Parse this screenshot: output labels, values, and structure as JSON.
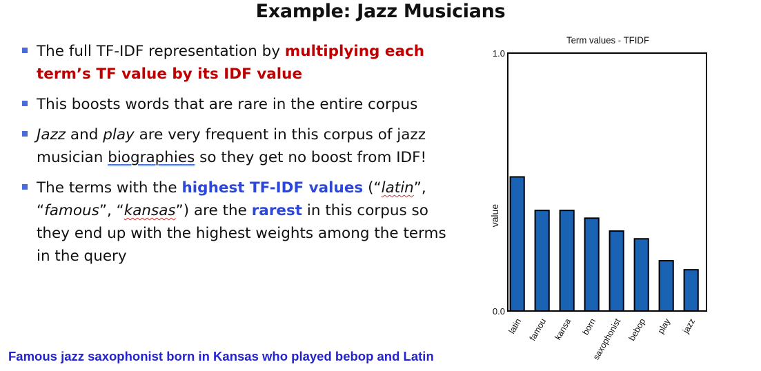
{
  "slide": {
    "title": "Example: Jazz Musicians",
    "bullets": {
      "b1": {
        "t1": "The full TF-IDF representation by ",
        "t2": "multiplying each term’s TF value by its IDF value"
      },
      "b2": {
        "t1": "This boosts words that are rare in the entire corpus"
      },
      "b3": {
        "t1": "Jazz",
        "t2": " and ",
        "t3": "play",
        "t4": " are very frequent in this corpus of jazz musician ",
        "t5": "biographies",
        "t6": " so they get no boost from IDF!"
      },
      "b4": {
        "t1": "The terms with the ",
        "t2": "highest TF-IDF values",
        "t3": " (“",
        "t4": "latin",
        "t5": "”, “",
        "t6": "famous",
        "t7": "”, “",
        "t8": "kansas",
        "t9": "”) are the ",
        "t10": "rarest",
        "t11": " in this corpus so they end up with the highest weights among the terms in the query"
      }
    },
    "query": "Famous jazz saxophonist born in Kansas who played bebop and Latin"
  },
  "colors": {
    "bar": "#1a63b4",
    "emphasis_red": "#c00000",
    "emphasis_blue": "#2d48d8",
    "query_blue": "#2323d0",
    "bullet_marker": "#4a6bd8"
  },
  "chart_data": {
    "type": "bar",
    "title": "Term values - TFIDF",
    "xlabel": "",
    "ylabel": "value",
    "categories": [
      "latin",
      "famou",
      "kansa",
      "born",
      "saxophonist",
      "bebop",
      "play",
      "jazz"
    ],
    "values": [
      0.52,
      0.39,
      0.39,
      0.36,
      0.31,
      0.28,
      0.195,
      0.16
    ],
    "ylim": [
      0,
      1
    ],
    "ytick_labels": [
      "0.0",
      "1.0"
    ],
    "grid": false,
    "legend": "none"
  }
}
